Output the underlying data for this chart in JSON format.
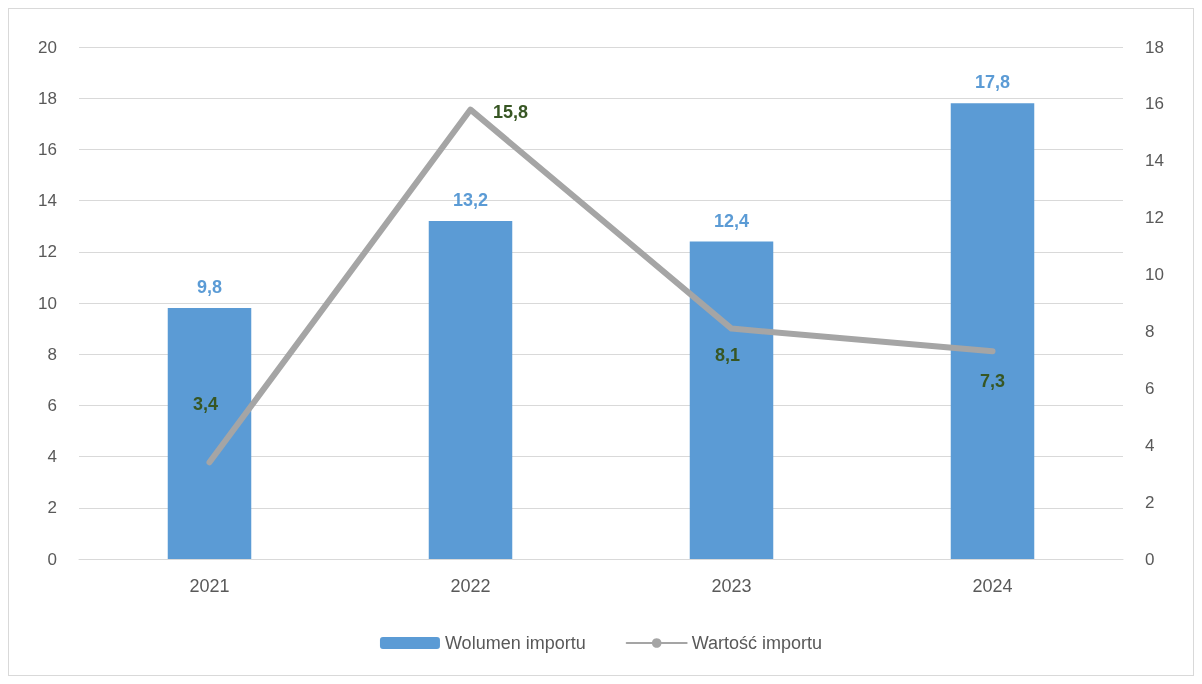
{
  "chart_data": {
    "type": "bar",
    "categories": [
      "2021",
      "2022",
      "2023",
      "2024"
    ],
    "series": [
      {
        "name": "Wolumen importu",
        "color": "#5b9bd5",
        "values": [
          9.8,
          13.2,
          12.4,
          17.8
        ],
        "value_labels": [
          "9,8",
          "13,2",
          "12,4",
          "17,8"
        ]
      },
      {
        "name": "Wartość importu",
        "type": "line",
        "axis": "y2",
        "color": "#a5a5a5",
        "values": [
          3.4,
          15.8,
          8.1,
          7.3
        ],
        "value_labels": [
          "3,4",
          "15,8",
          "8,1",
          "7,3"
        ]
      }
    ],
    "ylim": [
      0,
      20
    ],
    "yticks": [
      0,
      2,
      4,
      6,
      8,
      10,
      12,
      14,
      16,
      18,
      20
    ],
    "y2lim": [
      0,
      18
    ],
    "y2ticks": [
      0,
      2,
      4,
      6,
      8,
      10,
      12,
      14,
      16,
      18
    ],
    "grid": "y",
    "legend": "bottom",
    "marker": "none",
    "line_style": "solid"
  }
}
